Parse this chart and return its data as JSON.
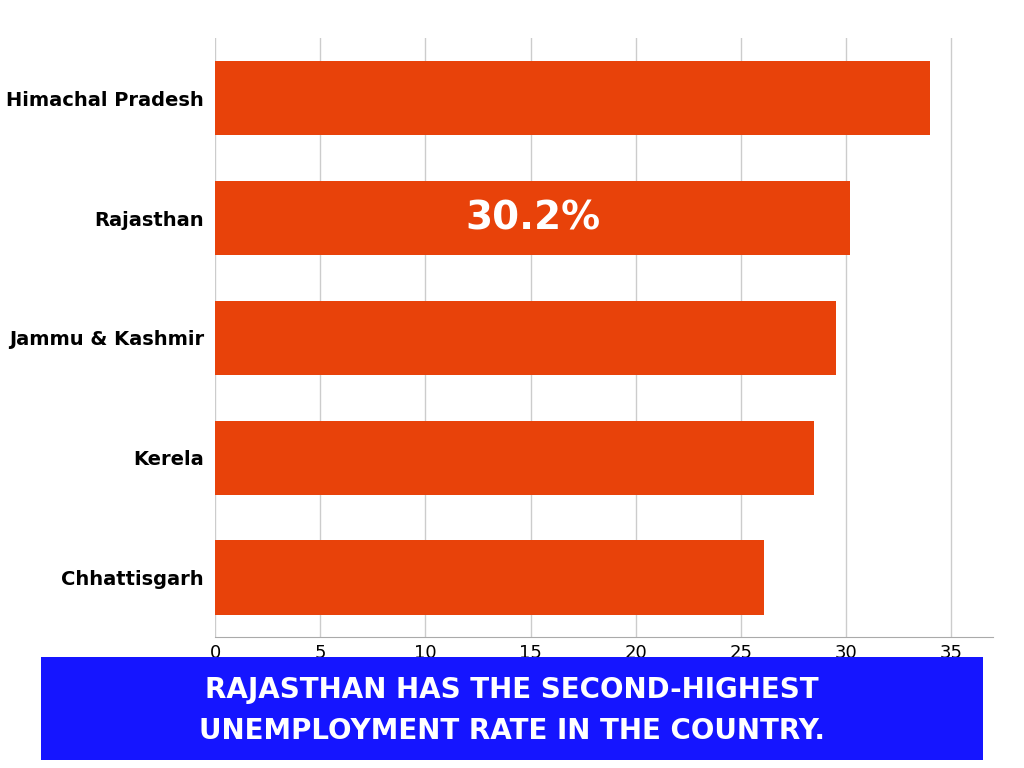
{
  "categories": [
    "Himachal Pradesh",
    "Rajasthan",
    "Jammu & Kashmir",
    "Kerela",
    "Chhattisgarh"
  ],
  "values": [
    34.0,
    30.2,
    29.5,
    28.5,
    26.1
  ],
  "bar_color": "#E8420A",
  "highlight_bar": "Rajasthan",
  "highlight_label": "30.2%",
  "highlight_label_color": "#FFFFFF",
  "highlight_label_fontsize": 28,
  "xlim": [
    0,
    37
  ],
  "xticks": [
    0,
    5,
    10,
    15,
    20,
    25,
    30,
    35
  ],
  "background_color": "#FFFFFF",
  "ytick_fontsize": 14,
  "xtick_fontsize": 13,
  "grid_color": "#CCCCCC",
  "footer_text_line1": "RAJASTHAN HAS THE SECOND-HIGHEST",
  "footer_text_line2": "UNEMPLOYMENT RATE IN THE COUNTRY.",
  "footer_bg_color": "#1515FF",
  "footer_text_color": "#FFFFFF",
  "footer_fontsize": 20
}
